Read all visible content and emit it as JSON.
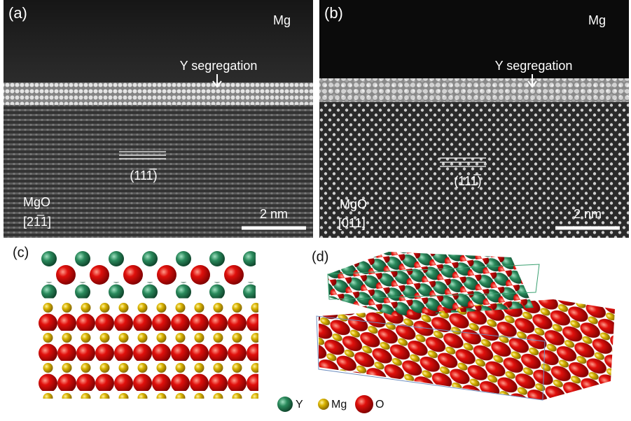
{
  "panels": [
    {
      "label": "(a)",
      "top_label": "Mg",
      "annotation": "Y segregation",
      "plane": "(111̅)",
      "material": "MgO",
      "zone_axis": "[21̅1]",
      "scale_bar": "2 nm"
    },
    {
      "label": "(b)",
      "top_label": "Mg",
      "annotation": "Y segregation",
      "plane": "(111̅)",
      "material": "MgO",
      "zone_axis": "[011]",
      "scale_bar": "2 nm"
    },
    {
      "label": "(c)"
    },
    {
      "label": "(d)"
    }
  ],
  "legend": [
    {
      "label": "Y"
    },
    {
      "label": "Mg"
    },
    {
      "label": "O"
    }
  ]
}
